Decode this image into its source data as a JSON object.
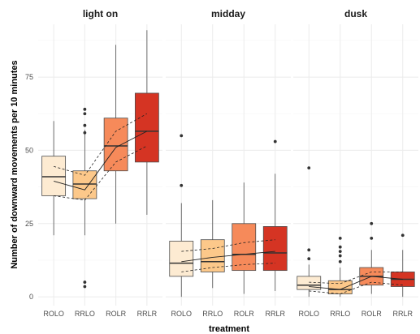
{
  "chart_data": {
    "type": "boxplot",
    "xlabel": "treatment",
    "ylabel": "Number of downward movements per 10 minutes",
    "ylim": [
      -3,
      93
    ],
    "yticks": [
      0,
      25,
      50,
      75
    ],
    "categories": [
      "ROLO",
      "RRLO",
      "ROLR",
      "RRLR"
    ],
    "category_colors": [
      "#fdebd2",
      "#fcc88a",
      "#f68a5a",
      "#d53423"
    ],
    "grid": true,
    "legend": "none",
    "panels": [
      {
        "name": "light on",
        "boxes": [
          {
            "category": "ROLO",
            "whisker_low": 21,
            "q1": 34.5,
            "median": 41,
            "q3": 48,
            "whisker_high": 60,
            "outliers": []
          },
          {
            "category": "RRLO",
            "whisker_low": 21,
            "q1": 33.5,
            "median": 38.5,
            "q3": 43,
            "whisker_high": 57,
            "outliers": [
              3.5,
              5,
              56,
              58.5,
              62.5,
              64
            ]
          },
          {
            "category": "ROLR",
            "whisker_low": 25,
            "q1": 43,
            "median": 51.5,
            "q3": 61,
            "whisker_high": 86,
            "outliers": []
          },
          {
            "category": "RRLR",
            "whisker_low": 28,
            "q1": 46,
            "median": 56.5,
            "q3": 69.5,
            "whisker_high": 91,
            "outliers": []
          }
        ],
        "trend_mean": [
          39.5,
          36.5,
          51,
          56.5
        ],
        "trend_upper": [
          44.5,
          41.5,
          56.5,
          62.5
        ],
        "trend_lower": [
          34.5,
          33,
          46,
          51.5
        ]
      },
      {
        "name": "midday",
        "boxes": [
          {
            "category": "ROLO",
            "whisker_low": 0,
            "q1": 7,
            "median": 11.5,
            "q3": 19,
            "whisker_high": 32,
            "outliers": [
              38,
              55
            ]
          },
          {
            "category": "RRLO",
            "whisker_low": 3,
            "q1": 8.5,
            "median": 12,
            "q3": 19.5,
            "whisker_high": 33,
            "outliers": []
          },
          {
            "category": "ROLR",
            "whisker_low": 1,
            "q1": 9,
            "median": 14.5,
            "q3": 25,
            "whisker_high": 39,
            "outliers": []
          },
          {
            "category": "RRLR",
            "whisker_low": 2,
            "q1": 9,
            "median": 15,
            "q3": 24,
            "whisker_high": 42,
            "outliers": [
              53
            ]
          }
        ],
        "trend_mean": [
          12,
          13.5,
          14.5,
          15.5
        ],
        "trend_upper": [
          15.5,
          16.5,
          18.5,
          19.5
        ],
        "trend_lower": [
          8.5,
          10,
          11,
          11.5
        ]
      },
      {
        "name": "dusk",
        "boxes": [
          {
            "category": "ROLO",
            "whisker_low": 0,
            "q1": 2.5,
            "median": 4,
            "q3": 7,
            "whisker_high": 11,
            "outliers": [
              13,
              16,
              44
            ]
          },
          {
            "category": "RRLO",
            "whisker_low": 0,
            "q1": 1,
            "median": 2.5,
            "q3": 5.5,
            "whisker_high": 10,
            "outliers": [
              12,
              14,
              15.5,
              17,
              20
            ]
          },
          {
            "category": "ROLR",
            "whisker_low": 1,
            "q1": 4,
            "median": 7,
            "q3": 10,
            "whisker_high": 16,
            "outliers": [
              20,
              25
            ]
          },
          {
            "category": "RRLR",
            "whisker_low": 0,
            "q1": 3.5,
            "median": 6,
            "q3": 8.5,
            "whisker_high": 16,
            "outliers": [
              21
            ]
          }
        ],
        "trend_mean": [
          3.5,
          2.5,
          7,
          6
        ],
        "trend_upper": [
          5,
          4.5,
          8.5,
          8.5
        ],
        "trend_lower": [
          2,
          1,
          5,
          4
        ]
      }
    ]
  }
}
